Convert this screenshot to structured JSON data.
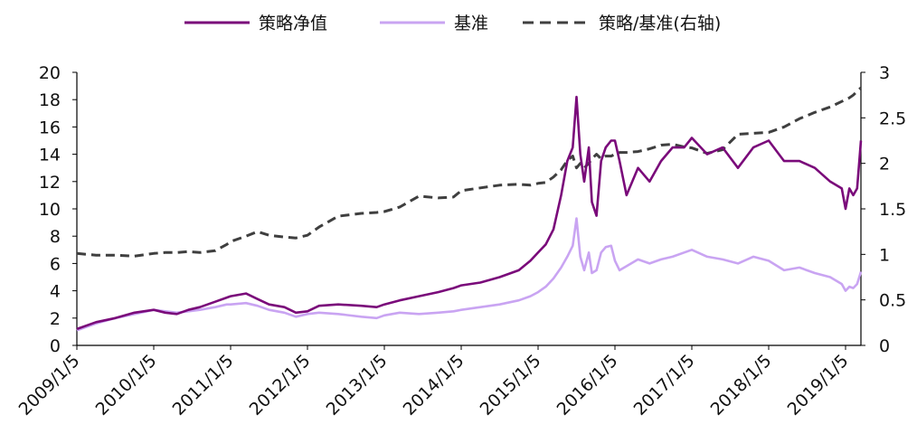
{
  "chart_data": {
    "type": "line",
    "title": "",
    "xlabel": "",
    "ylabel": "",
    "legend_placement": "top",
    "grid": false,
    "left_axis": {
      "ylim": [
        0,
        20
      ],
      "ticks": [
        "0",
        "2",
        "4",
        "6",
        "8",
        "10",
        "12",
        "14",
        "16",
        "18",
        "20"
      ]
    },
    "right_axis": {
      "ylim": [
        0,
        3
      ],
      "ticks": [
        "0",
        "0.5",
        "1",
        "1.5",
        "2",
        "2.5",
        "3"
      ]
    },
    "x_tick_labels": [
      "2009/1/5",
      "2010/1/5",
      "2011/1/5",
      "2012/1/5",
      "2013/1/5",
      "2014/1/5",
      "2015/1/5",
      "2016/1/5",
      "2017/1/5",
      "2018/1/5",
      "2019/1/5"
    ],
    "x_range": [
      2009.0,
      2019.2
    ],
    "series": [
      {
        "name": "策略净值",
        "axis": "left",
        "style": "solid",
        "color": "#7a0a7a",
        "x": [
          2009.0,
          2009.25,
          2009.5,
          2009.75,
          2010.0,
          2010.15,
          2010.3,
          2010.45,
          2010.6,
          2010.8,
          2010.95,
          2011.0,
          2011.2,
          2011.35,
          2011.5,
          2011.7,
          2011.85,
          2012.0,
          2012.15,
          2012.4,
          2012.7,
          2012.9,
          2013.0,
          2013.2,
          2013.45,
          2013.7,
          2013.9,
          2014.0,
          2014.25,
          2014.5,
          2014.75,
          2014.9,
          2015.0,
          2015.1,
          2015.2,
          2015.3,
          2015.38,
          2015.45,
          2015.5,
          2015.55,
          2015.6,
          2015.66,
          2015.7,
          2015.76,
          2015.82,
          2015.88,
          2015.95,
          2016.0,
          2016.06,
          2016.15,
          2016.3,
          2016.45,
          2016.6,
          2016.75,
          2016.9,
          2017.0,
          2017.2,
          2017.4,
          2017.6,
          2017.8,
          2018.0,
          2018.2,
          2018.4,
          2018.6,
          2018.8,
          2018.95,
          2019.0,
          2019.05,
          2019.1,
          2019.15,
          2019.2
        ],
        "values": [
          1.2,
          1.7,
          2.0,
          2.4,
          2.6,
          2.4,
          2.3,
          2.6,
          2.8,
          3.2,
          3.5,
          3.6,
          3.8,
          3.4,
          3.0,
          2.8,
          2.4,
          2.5,
          2.9,
          3.0,
          2.9,
          2.8,
          3.0,
          3.3,
          3.6,
          3.9,
          4.2,
          4.4,
          4.6,
          5.0,
          5.5,
          6.2,
          6.8,
          7.4,
          8.5,
          11.0,
          13.5,
          14.5,
          18.2,
          14.0,
          12.0,
          14.5,
          10.5,
          9.5,
          13.5,
          14.5,
          15.0,
          15.0,
          13.5,
          11.0,
          13.0,
          12.0,
          13.5,
          14.5,
          14.5,
          15.2,
          14.0,
          14.5,
          13.0,
          14.5,
          15.0,
          13.5,
          13.5,
          13.0,
          12.0,
          11.5,
          10.0,
          11.5,
          11.0,
          11.5,
          15.0
        ]
      },
      {
        "name": "基准",
        "axis": "left",
        "style": "solid",
        "color": "#c9a4f2",
        "x": [
          2009.0,
          2009.25,
          2009.5,
          2009.75,
          2010.0,
          2010.15,
          2010.3,
          2010.45,
          2010.6,
          2010.8,
          2010.95,
          2011.0,
          2011.2,
          2011.35,
          2011.5,
          2011.7,
          2011.85,
          2012.0,
          2012.15,
          2012.4,
          2012.7,
          2012.9,
          2013.0,
          2013.2,
          2013.45,
          2013.7,
          2013.9,
          2014.0,
          2014.25,
          2014.5,
          2014.75,
          2014.9,
          2015.0,
          2015.1,
          2015.2,
          2015.3,
          2015.38,
          2015.45,
          2015.5,
          2015.55,
          2015.6,
          2015.66,
          2015.7,
          2015.76,
          2015.82,
          2015.88,
          2015.95,
          2016.0,
          2016.06,
          2016.15,
          2016.3,
          2016.45,
          2016.6,
          2016.75,
          2016.9,
          2017.0,
          2017.2,
          2017.4,
          2017.6,
          2017.8,
          2018.0,
          2018.2,
          2018.4,
          2018.6,
          2018.8,
          2018.95,
          2019.0,
          2019.05,
          2019.1,
          2019.15,
          2019.2
        ],
        "values": [
          1.1,
          1.6,
          2.0,
          2.3,
          2.6,
          2.5,
          2.4,
          2.5,
          2.6,
          2.8,
          3.0,
          3.0,
          3.1,
          2.9,
          2.6,
          2.4,
          2.1,
          2.3,
          2.4,
          2.3,
          2.1,
          2.0,
          2.2,
          2.4,
          2.3,
          2.4,
          2.5,
          2.6,
          2.8,
          3.0,
          3.3,
          3.6,
          3.9,
          4.3,
          4.9,
          5.7,
          6.5,
          7.3,
          9.3,
          6.5,
          5.5,
          6.8,
          5.3,
          5.5,
          6.8,
          7.2,
          7.3,
          6.2,
          5.5,
          5.8,
          6.3,
          6.0,
          6.3,
          6.5,
          6.8,
          7.0,
          6.5,
          6.3,
          6.0,
          6.5,
          6.2,
          5.5,
          5.7,
          5.3,
          5.0,
          4.5,
          4.0,
          4.3,
          4.2,
          4.5,
          5.4
        ]
      },
      {
        "name": "策略/基准(右轴)",
        "axis": "right",
        "style": "dashed",
        "color": "#3f3f3f",
        "x": [
          2009.0,
          2009.25,
          2009.5,
          2009.75,
          2010.0,
          2010.15,
          2010.3,
          2010.45,
          2010.6,
          2010.8,
          2010.95,
          2011.0,
          2011.2,
          2011.35,
          2011.5,
          2011.7,
          2011.85,
          2012.0,
          2012.15,
          2012.4,
          2012.7,
          2012.9,
          2013.0,
          2013.2,
          2013.45,
          2013.7,
          2013.9,
          2014.0,
          2014.25,
          2014.5,
          2014.75,
          2014.9,
          2015.0,
          2015.1,
          2015.2,
          2015.3,
          2015.38,
          2015.45,
          2015.5,
          2015.55,
          2015.6,
          2015.66,
          2015.7,
          2015.76,
          2015.82,
          2015.88,
          2015.95,
          2016.0,
          2016.06,
          2016.15,
          2016.3,
          2016.45,
          2016.6,
          2016.75,
          2016.9,
          2017.0,
          2017.2,
          2017.4,
          2017.6,
          2017.8,
          2018.0,
          2018.2,
          2018.4,
          2018.6,
          2018.8,
          2018.95,
          2019.0,
          2019.05,
          2019.1,
          2019.15,
          2019.2
        ],
        "values": [
          1.01,
          0.99,
          0.99,
          0.98,
          1.01,
          1.02,
          1.02,
          1.03,
          1.02,
          1.04,
          1.11,
          1.14,
          1.2,
          1.25,
          1.21,
          1.19,
          1.18,
          1.21,
          1.3,
          1.42,
          1.45,
          1.46,
          1.47,
          1.52,
          1.64,
          1.62,
          1.63,
          1.7,
          1.73,
          1.76,
          1.77,
          1.76,
          1.78,
          1.79,
          1.85,
          1.93,
          2.03,
          2.08,
          1.95,
          2.0,
          1.95,
          2.0,
          2.05,
          2.1,
          2.05,
          2.08,
          2.08,
          2.1,
          2.12,
          2.12,
          2.13,
          2.16,
          2.2,
          2.21,
          2.18,
          2.17,
          2.11,
          2.15,
          2.32,
          2.33,
          2.34,
          2.4,
          2.49,
          2.56,
          2.62,
          2.68,
          2.7,
          2.72,
          2.75,
          2.79,
          2.83
        ]
      }
    ]
  }
}
